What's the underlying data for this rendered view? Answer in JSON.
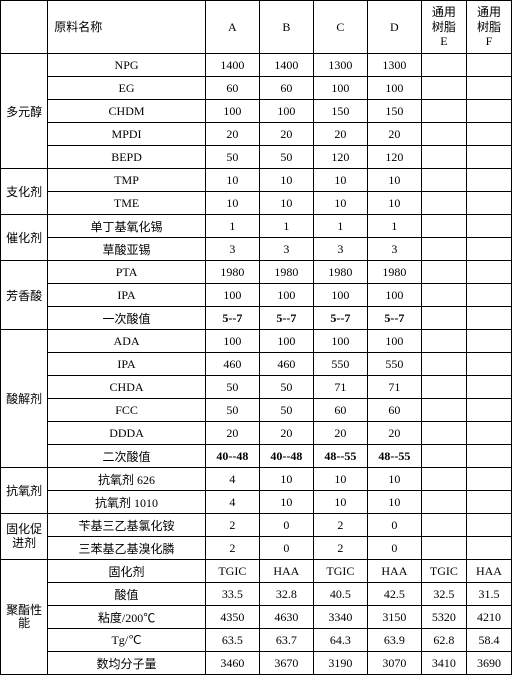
{
  "headers": {
    "material_name": "原料名称",
    "A": "A",
    "B": "B",
    "C": "C",
    "D": "D",
    "E": "通用\n树脂\nE",
    "F": "通用\n树脂\nF"
  },
  "categories": {
    "polyol": "多元醇",
    "branching": "支化剂",
    "catalyst": "催化剂",
    "aromatic_acid": "芳香酸",
    "acidolysis": "酸解剂",
    "antioxidant": "抗氧剂",
    "cure_promoter": "固化促\n进剂",
    "polyester_perf": "聚酯性\n能"
  },
  "rows": {
    "npg": {
      "name": "NPG",
      "a": "1400",
      "b": "1400",
      "c": "1300",
      "d": "1300"
    },
    "eg": {
      "name": "EG",
      "a": "60",
      "b": "60",
      "c": "100",
      "d": "100"
    },
    "chdm": {
      "name": "CHDM",
      "a": "100",
      "b": "100",
      "c": "150",
      "d": "150"
    },
    "mpdi": {
      "name": "MPDI",
      "a": "20",
      "b": "20",
      "c": "20",
      "d": "20"
    },
    "bepd": {
      "name": "BEPD",
      "a": "50",
      "b": "50",
      "c": "120",
      "d": "120"
    },
    "tmp": {
      "name": "TMP",
      "a": "10",
      "b": "10",
      "c": "10",
      "d": "10"
    },
    "tme": {
      "name": "TME",
      "a": "10",
      "b": "10",
      "c": "10",
      "d": "10"
    },
    "mbto": {
      "name": "单丁基氧化锡",
      "a": "1",
      "b": "1",
      "c": "1",
      "d": "1"
    },
    "tin_oxalate": {
      "name": "草酸亚锡",
      "a": "3",
      "b": "3",
      "c": "3",
      "d": "3"
    },
    "pta": {
      "name": "PTA",
      "a": "1980",
      "b": "1980",
      "c": "1980",
      "d": "1980"
    },
    "ipa1": {
      "name": "IPA",
      "a": "100",
      "b": "100",
      "c": "100",
      "d": "100"
    },
    "first_acid_b": {
      "name": "一次酸值",
      "a": "5--7",
      "b": "5--7",
      "c": "5--7",
      "d": "5--7"
    },
    "ada": {
      "name": "ADA",
      "a": "100",
      "b": "100",
      "c": "100",
      "d": "100"
    },
    "ipa2": {
      "name": "IPA",
      "a": "460",
      "b": "460",
      "c": "550",
      "d": "550"
    },
    "chda": {
      "name": "CHDA",
      "a": "50",
      "b": "50",
      "c": "71",
      "d": "71"
    },
    "fcc": {
      "name": "FCC",
      "a": "50",
      "b": "50",
      "c": "60",
      "d": "60"
    },
    "ddda": {
      "name": "DDDA",
      "a": "20",
      "b": "20",
      "c": "20",
      "d": "20"
    },
    "second_acid_b": {
      "name": "二次酸值",
      "a": "40--48",
      "b": "40--48",
      "c": "48--55",
      "d": "48--55"
    },
    "ao626": {
      "name": "抗氧剂 626",
      "a": "4",
      "b": "10",
      "c": "10",
      "d": "10"
    },
    "ao1010": {
      "name": "抗氧剂 1010",
      "a": "4",
      "b": "10",
      "c": "10",
      "d": "10"
    },
    "cp1": {
      "name": "苄基三乙基氯化铵",
      "a": "2",
      "b": "0",
      "c": "2",
      "d": "0"
    },
    "cp2": {
      "name": "三苯基乙基溴化膦",
      "a": "2",
      "b": "0",
      "c": "2",
      "d": "0"
    },
    "curing": {
      "name": "固化剂",
      "a": "TGIC",
      "b": "HAA",
      "c": "TGIC",
      "d": "HAA",
      "e": "TGIC",
      "f": "HAA"
    },
    "acid_val": {
      "name": "酸值",
      "a": "33.5",
      "b": "32.8",
      "c": "40.5",
      "d": "42.5",
      "e": "32.5",
      "f": "31.5"
    },
    "viscosity": {
      "name": "粘度/200℃",
      "a": "4350",
      "b": "4630",
      "c": "3340",
      "d": "3150",
      "e": "5320",
      "f": "4210"
    },
    "tg": {
      "name": "Tg/℃",
      "a": "63.5",
      "b": "63.7",
      "c": "64.3",
      "d": "63.9",
      "e": "62.8",
      "f": "58.4"
    },
    "mn": {
      "name": "数均分子量",
      "a": "3460",
      "b": "3670",
      "c": "3190",
      "d": "3070",
      "e": "3410",
      "f": "3690"
    }
  }
}
